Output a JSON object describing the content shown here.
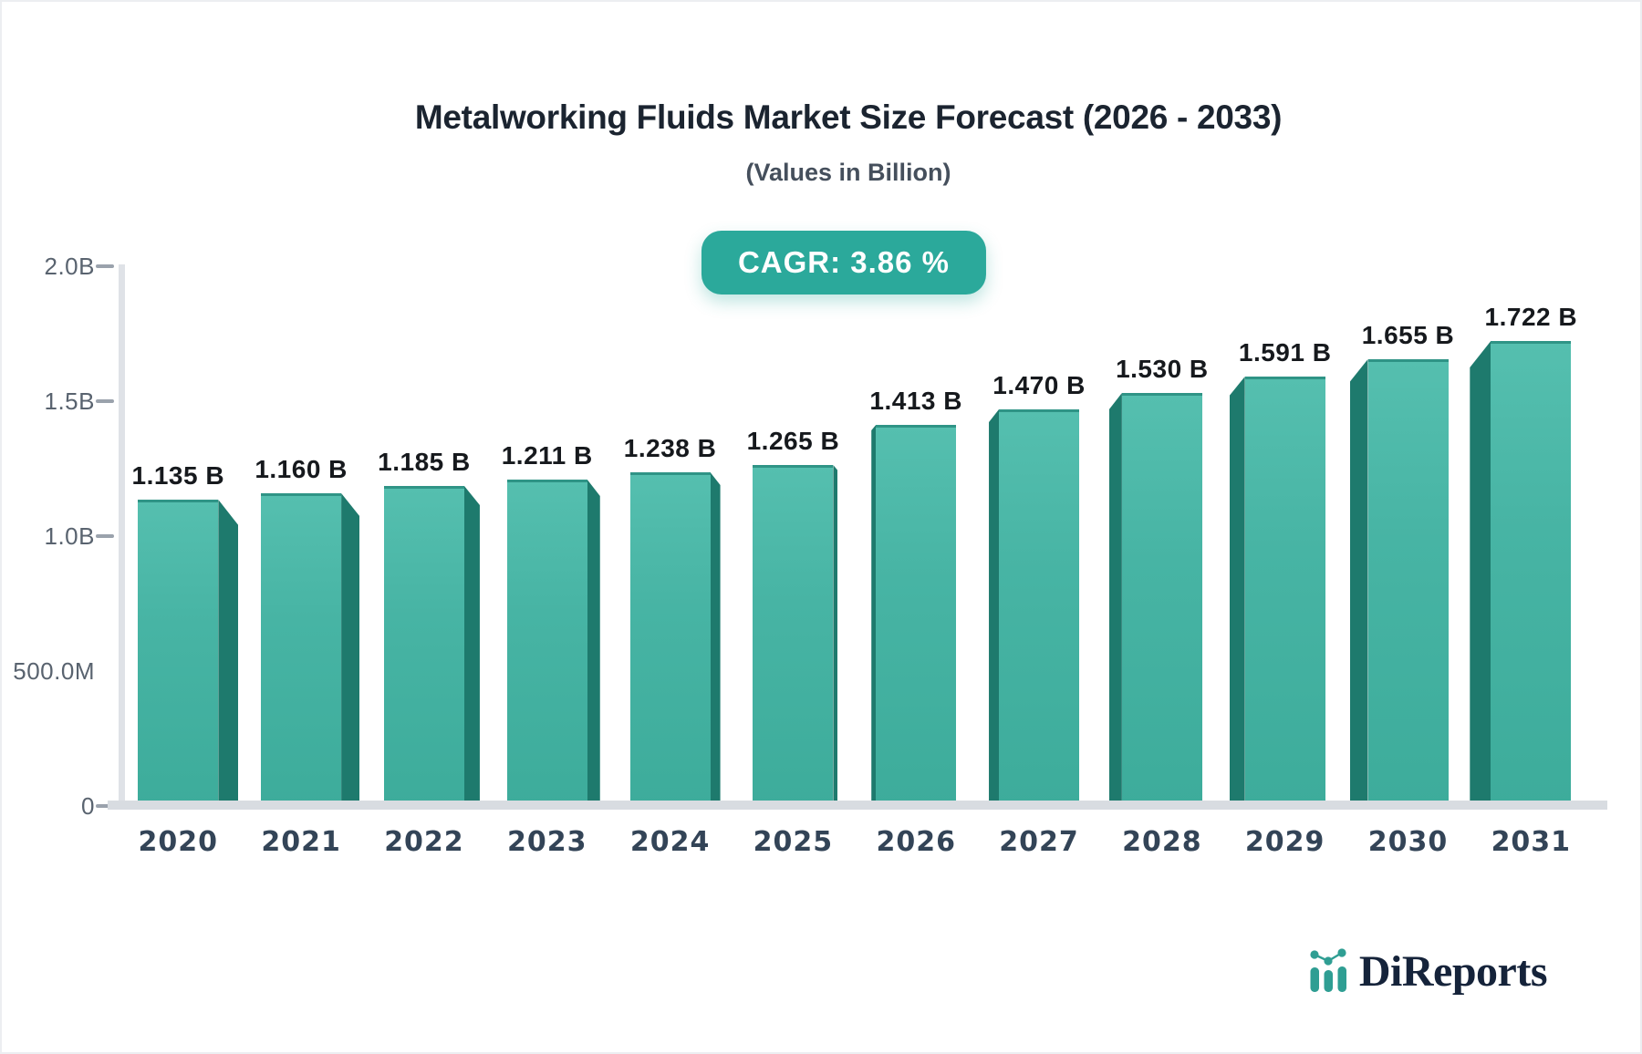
{
  "header": {
    "title": "Metalworking Fluids Market Size Forecast (2026 - 2033)",
    "subtitle": "(Values in Billion)",
    "cagr_badge": "CAGR: 3.86 %"
  },
  "chart_data": {
    "type": "bar",
    "title": "Metalworking Fluids Market Size Forecast (2026 - 2033)",
    "subtitle": "(Values in Billion)",
    "cagr_percent": 3.86,
    "categories": [
      "2020",
      "2021",
      "2022",
      "2023",
      "2024",
      "2025",
      "2026",
      "2027",
      "2028",
      "2029",
      "2030",
      "2031"
    ],
    "values": [
      1.135,
      1.16,
      1.185,
      1.211,
      1.238,
      1.265,
      1.413,
      1.47,
      1.53,
      1.591,
      1.655,
      1.722
    ],
    "value_labels": [
      "1.135 B",
      "1.160 B",
      "1.185 B",
      "1.211 B",
      "1.238 B",
      "1.265 B",
      "1.413 B",
      "1.470 B",
      "1.530 B",
      "1.591 B",
      "1.655 B",
      "1.722 B"
    ],
    "xlabel": "",
    "ylabel": "",
    "ylim": [
      0,
      2.0
    ],
    "y_ticks": [
      {
        "label": "2.0B",
        "value": 2.0,
        "dash": true
      },
      {
        "label": "1.5B",
        "value": 1.5,
        "dash": true
      },
      {
        "label": "1.0B",
        "value": 1.0,
        "dash": true
      },
      {
        "label": "500.0M",
        "value": 0.5,
        "dash": false
      },
      {
        "label": "0",
        "value": 0.0,
        "dash": true
      }
    ],
    "grid": false,
    "legend": false,
    "colors": {
      "bar_face_top": "#55bfaf",
      "bar_face_bottom": "#3dac9b",
      "bar_side_face": "#1e7a6d",
      "bar_cap_line": "#2f9486",
      "badge_background": "#2ba99b",
      "axis_gray": "#d8dce1"
    }
  },
  "branding": {
    "logo_text": "DiReports"
  }
}
